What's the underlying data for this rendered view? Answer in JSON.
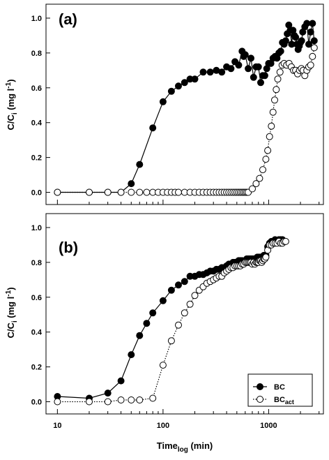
{
  "chart_data": [
    {
      "type": "scatter",
      "panel_label": "(a)",
      "ylabel_main": "C/C",
      "ylabel_sub": "i",
      "ylabel_unit": " (mg l",
      "ylabel_unit_sup": "-1",
      "ylabel_close": ")",
      "xscale": "log",
      "xlim": [
        7.8,
        3300
      ],
      "ylim": [
        -0.07,
        1.08
      ],
      "yticks": [
        "0.0",
        "0.2",
        "0.4",
        "0.6",
        "0.8",
        "1.0"
      ],
      "series": [
        {
          "key": "BC",
          "marker": "filled-circle",
          "line": "solid",
          "x": [
            10,
            20,
            30,
            40,
            50,
            60,
            80,
            100,
            120,
            140,
            160,
            180,
            200,
            240,
            280,
            320,
            360,
            400,
            440,
            480,
            520,
            560,
            580,
            600,
            640,
            680,
            720,
            760,
            800,
            840,
            880,
            920,
            960,
            1000,
            1050,
            1100,
            1150,
            1200,
            1250,
            1300,
            1350,
            1400,
            1450,
            1500,
            1550,
            1600,
            1650,
            1700,
            1750,
            1800,
            1850,
            1900,
            1950,
            2000,
            2050,
            2100,
            2200,
            2300,
            2400,
            2500,
            2600,
            2700
          ],
          "y": [
            0.0,
            0.0,
            0.0,
            0.0,
            0.05,
            0.16,
            0.37,
            0.52,
            0.58,
            0.61,
            0.63,
            0.65,
            0.65,
            0.69,
            0.69,
            0.7,
            0.69,
            0.72,
            0.71,
            0.75,
            0.73,
            0.81,
            0.78,
            0.79,
            0.71,
            0.77,
            0.66,
            0.72,
            0.72,
            0.63,
            0.67,
            0.67,
            0.71,
            0.74,
            0.74,
            0.77,
            0.78,
            0.77,
            0.8,
            0.81,
            0.86,
            0.85,
            0.87,
            0.91,
            0.96,
            0.93,
            0.85,
            0.93,
            0.9,
            0.89,
            0.85,
            0.82,
            0.84,
            0.86,
            0.87,
            0.92,
            0.95,
            0.97,
            0.85,
            0.92,
            0.97,
            0.87
          ]
        },
        {
          "key": "BCact",
          "marker": "open-circle",
          "line": "dotted",
          "x": [
            10,
            20,
            30,
            40,
            50,
            60,
            70,
            80,
            90,
            100,
            110,
            120,
            130,
            140,
            160,
            180,
            200,
            220,
            240,
            260,
            280,
            300,
            320,
            340,
            360,
            380,
            400,
            420,
            440,
            460,
            480,
            500,
            520,
            540,
            560,
            580,
            600,
            620,
            640,
            700,
            760,
            820,
            880,
            940,
            980,
            1020,
            1060,
            1100,
            1140,
            1180,
            1220,
            1280,
            1340,
            1400,
            1480,
            1560,
            1640,
            1720,
            1800,
            1880,
            1960,
            2040,
            2120,
            2200,
            2300,
            2400,
            2500,
            2600,
            2700
          ],
          "y": [
            0.0,
            0.0,
            0.0,
            0.0,
            0.0,
            0.0,
            0.0,
            0.0,
            0.0,
            0.0,
            0.0,
            0.0,
            0.0,
            0.0,
            0.0,
            0.0,
            0.0,
            0.0,
            0.0,
            0.0,
            0.0,
            0.0,
            0.0,
            0.0,
            0.0,
            0.0,
            0.0,
            0.0,
            0.0,
            0.0,
            0.0,
            0.0,
            0.0,
            0.0,
            0.0,
            0.0,
            0.0,
            0.0,
            0.0,
            0.02,
            0.05,
            0.08,
            0.13,
            0.19,
            0.24,
            0.32,
            0.38,
            0.46,
            0.53,
            0.59,
            0.65,
            0.69,
            0.73,
            0.74,
            0.73,
            0.74,
            0.72,
            0.7,
            0.7,
            0.68,
            0.7,
            0.71,
            0.7,
            0.67,
            0.7,
            0.72,
            0.73,
            0.78,
            0.83
          ]
        }
      ]
    },
    {
      "type": "scatter",
      "panel_label": "(b)",
      "ylabel_main": "C/C",
      "ylabel_sub": "i",
      "ylabel_unit": " (mg l",
      "ylabel_unit_sup": "-1",
      "ylabel_close": ")",
      "xscale": "log",
      "xlim": [
        7.8,
        3300
      ],
      "ylim": [
        -0.07,
        1.08
      ],
      "yticks": [
        "0.0",
        "0.2",
        "0.4",
        "0.6",
        "0.8",
        "1.0"
      ],
      "xticks": [
        "10",
        "100",
        "1000"
      ],
      "xlabel_main": "Time",
      "xlabel_sub": "log",
      "xlabel_unit": " (min)",
      "legend": {
        "position": "bottom-right",
        "entries": [
          {
            "label": "BC",
            "sub": "",
            "marker": "filled-circle",
            "line": "solid"
          },
          {
            "label": "BC",
            "sub": "act",
            "marker": "open-circle",
            "line": "dotted"
          }
        ]
      },
      "series": [
        {
          "key": "BC",
          "marker": "filled-circle",
          "line": "solid",
          "x": [
            10,
            20,
            30,
            40,
            50,
            60,
            70,
            80,
            100,
            120,
            140,
            160,
            180,
            200,
            220,
            240,
            260,
            280,
            300,
            320,
            340,
            360,
            380,
            400,
            420,
            440,
            460,
            480,
            500,
            520,
            540,
            560,
            580,
            600,
            620,
            640,
            660,
            680,
            700,
            720,
            740,
            760,
            780,
            800,
            820,
            840,
            860,
            880,
            900,
            920,
            940,
            980,
            1020,
            1060,
            1100,
            1150,
            1200,
            1250,
            1300,
            1350
          ],
          "y": [
            0.03,
            0.02,
            0.05,
            0.12,
            0.27,
            0.38,
            0.45,
            0.51,
            0.58,
            0.64,
            0.67,
            0.69,
            0.72,
            0.72,
            0.73,
            0.73,
            0.74,
            0.75,
            0.75,
            0.76,
            0.76,
            0.77,
            0.77,
            0.78,
            0.79,
            0.79,
            0.8,
            0.8,
            0.8,
            0.81,
            0.81,
            0.81,
            0.8,
            0.81,
            0.82,
            0.82,
            0.82,
            0.82,
            0.82,
            0.82,
            0.82,
            0.82,
            0.83,
            0.83,
            0.83,
            0.83,
            0.83,
            0.83,
            0.84,
            0.84,
            0.84,
            0.89,
            0.91,
            0.92,
            0.92,
            0.93,
            0.92,
            0.93,
            0.93,
            0.93
          ]
        },
        {
          "key": "BCact",
          "marker": "open-circle",
          "line": "dotted",
          "x": [
            10,
            20,
            30,
            40,
            50,
            60,
            80,
            100,
            120,
            140,
            160,
            180,
            200,
            220,
            240,
            260,
            280,
            300,
            320,
            340,
            360,
            380,
            400,
            420,
            440,
            460,
            480,
            500,
            520,
            540,
            560,
            580,
            600,
            620,
            640,
            660,
            680,
            700,
            720,
            740,
            760,
            780,
            800,
            820,
            840,
            860,
            880,
            900,
            920,
            940,
            980,
            1020,
            1060,
            1100,
            1150,
            1200,
            1250,
            1300,
            1350,
            1400,
            1450
          ],
          "y": [
            0.0,
            0.0,
            0.0,
            0.01,
            0.01,
            0.01,
            0.02,
            0.21,
            0.35,
            0.44,
            0.51,
            0.56,
            0.61,
            0.64,
            0.66,
            0.68,
            0.69,
            0.7,
            0.71,
            0.72,
            0.72,
            0.74,
            0.75,
            0.76,
            0.77,
            0.77,
            0.78,
            0.78,
            0.78,
            0.78,
            0.79,
            0.79,
            0.8,
            0.8,
            0.8,
            0.8,
            0.8,
            0.79,
            0.8,
            0.79,
            0.8,
            0.8,
            0.8,
            0.81,
            0.81,
            0.8,
            0.81,
            0.82,
            0.82,
            0.83,
            0.87,
            0.9,
            0.9,
            0.91,
            0.91,
            0.91,
            0.92,
            0.91,
            0.91,
            0.92,
            0.92
          ]
        }
      ]
    }
  ]
}
